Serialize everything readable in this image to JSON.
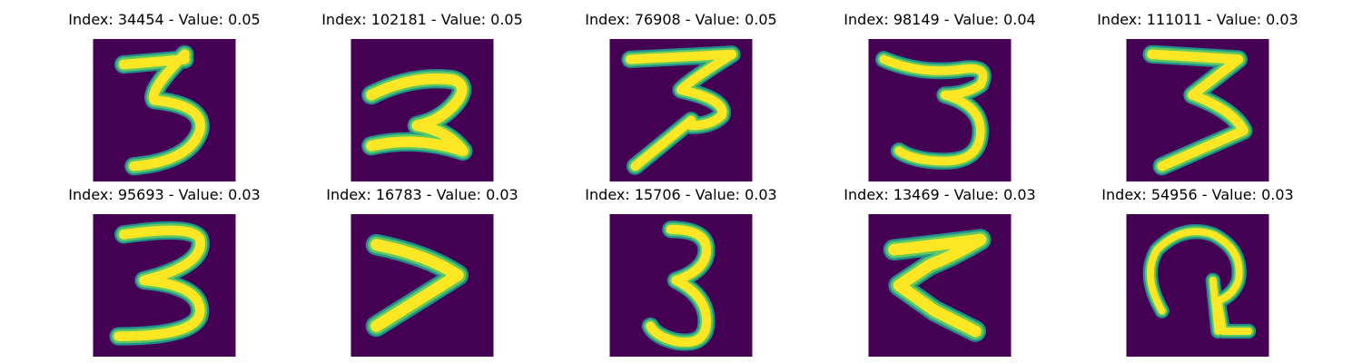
{
  "figure": {
    "colors": {
      "background": "#440154",
      "stroke_outer": "#21918c",
      "stroke_mid": "#5ec962",
      "stroke_core": "#fde725"
    },
    "panels": [
      {
        "title": "Index: 34454 - Value: 0.05",
        "depicts": "handwritten digit 3"
      },
      {
        "title": "Index: 102181 - Value: 0.05",
        "depicts": "handwritten digit 2"
      },
      {
        "title": "Index: 76908 - Value: 0.05",
        "depicts": "handwritten digit 3"
      },
      {
        "title": "Index: 98149 - Value: 0.04",
        "depicts": "handwritten digit 3"
      },
      {
        "title": "Index: 111011 - Value: 0.03",
        "depicts": "handwritten digit 3"
      },
      {
        "title": "Index: 95693 - Value: 0.03",
        "depicts": "handwritten digit 3"
      },
      {
        "title": "Index: 16783 - Value: 0.03",
        "depicts": "handwritten digit resembling >"
      },
      {
        "title": "Index: 15706 - Value: 0.03",
        "depicts": "handwritten digit 3"
      },
      {
        "title": "Index: 13469 - Value: 0.03",
        "depicts": "handwritten digit resembling 7"
      },
      {
        "title": "Index: 54956 - Value: 0.03",
        "depicts": "handwritten digit resembling 2"
      }
    ]
  }
}
